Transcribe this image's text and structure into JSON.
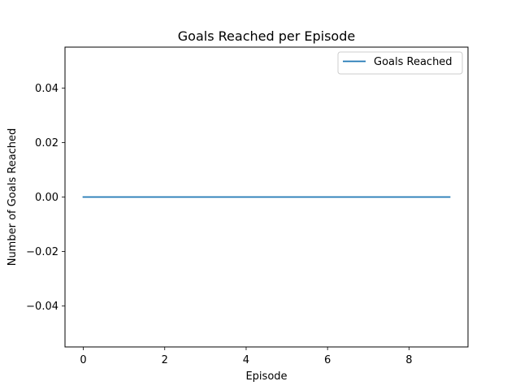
{
  "chart_data": {
    "type": "line",
    "title": "Goals Reached per Episode",
    "xlabel": "Episode",
    "ylabel": "Number of Goals Reached",
    "xlim": [
      -0.45,
      9.45
    ],
    "ylim": [
      -0.055,
      0.055
    ],
    "xticks": [
      0,
      2,
      4,
      6,
      8
    ],
    "xtick_labels": [
      "0",
      "2",
      "4",
      "6",
      "8"
    ],
    "yticks": [
      -0.04,
      -0.02,
      0.0,
      0.02,
      0.04
    ],
    "ytick_labels": [
      "−0.04",
      "−0.02",
      "0.00",
      "0.02",
      "0.04"
    ],
    "grid": false,
    "legend_position": "top-right",
    "series": [
      {
        "name": "Goals Reached",
        "color": "#1f77b4",
        "x": [
          0,
          1,
          2,
          3,
          4,
          5,
          6,
          7,
          8,
          9
        ],
        "values": [
          0,
          0,
          0,
          0,
          0,
          0,
          0,
          0,
          0,
          0
        ]
      }
    ]
  }
}
